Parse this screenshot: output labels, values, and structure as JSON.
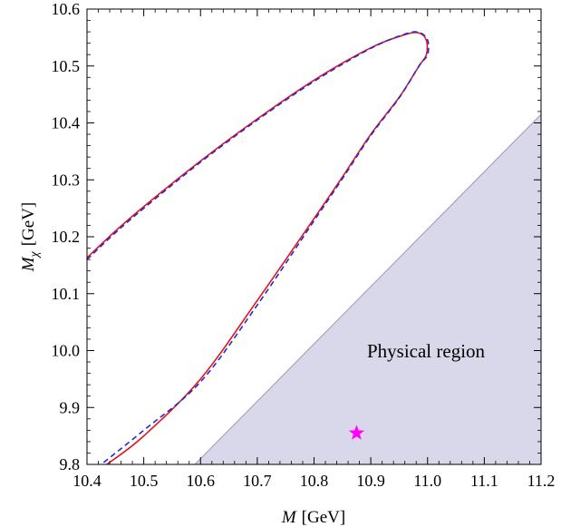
{
  "chart_data": {
    "type": "line",
    "xlabel": {
      "var": "M",
      "unit": "[GeV]"
    },
    "ylabel": {
      "var": "M",
      "sub": "χ",
      "unit": "[GeV]"
    },
    "xlim": [
      10.4,
      11.2
    ],
    "ylim": [
      9.8,
      10.6
    ],
    "xticks": [
      "10.4",
      "10.5",
      "10.6",
      "10.7",
      "10.8",
      "10.9",
      "11.0",
      "11.1",
      "11.2"
    ],
    "yticks": [
      "9.8",
      "9.9",
      "10.0",
      "10.1",
      "10.2",
      "10.3",
      "10.4",
      "10.5",
      "10.6"
    ],
    "grid": false,
    "region": {
      "label": "Physical region",
      "color": "#d8d8ea",
      "boundary": [
        [
          10.59,
          9.8
        ],
        [
          11.2,
          10.415
        ]
      ]
    },
    "marker": {
      "shape": "star",
      "color": "#ff00ff",
      "x": 10.875,
      "y": 9.855
    },
    "series": [
      {
        "color": "#e8131a",
        "style": "solid",
        "points": [
          [
            10.4,
            10.163
          ],
          [
            10.45,
            10.21
          ],
          [
            10.5,
            10.253
          ],
          [
            10.6,
            10.333
          ],
          [
            10.7,
            10.407
          ],
          [
            10.8,
            10.475
          ],
          [
            10.9,
            10.532
          ],
          [
            10.96,
            10.555
          ],
          [
            10.985,
            10.558
          ],
          [
            10.998,
            10.545
          ],
          [
            10.998,
            10.52
          ],
          [
            10.985,
            10.5
          ],
          [
            10.95,
            10.445
          ],
          [
            10.9,
            10.38
          ],
          [
            10.85,
            10.305
          ],
          [
            10.8,
            10.232
          ],
          [
            10.7,
            10.088
          ],
          [
            10.6,
            9.95
          ],
          [
            10.5,
            9.85
          ],
          [
            10.435,
            9.8
          ]
        ]
      },
      {
        "color": "#1f2bd6",
        "style": "dashed",
        "points": [
          [
            10.4,
            10.16
          ],
          [
            10.45,
            10.207
          ],
          [
            10.5,
            10.25
          ],
          [
            10.6,
            10.331
          ],
          [
            10.7,
            10.405
          ],
          [
            10.8,
            10.473
          ],
          [
            10.9,
            10.531
          ],
          [
            10.96,
            10.556
          ],
          [
            10.985,
            10.559
          ],
          [
            11.0,
            10.546
          ],
          [
            11.0,
            10.52
          ],
          [
            10.985,
            10.5
          ],
          [
            10.95,
            10.444
          ],
          [
            10.9,
            10.378
          ],
          [
            10.85,
            10.302
          ],
          [
            10.8,
            10.228
          ],
          [
            10.7,
            10.08
          ],
          [
            10.6,
            9.945
          ],
          [
            10.5,
            9.86
          ],
          [
            10.425,
            9.8
          ]
        ]
      }
    ]
  }
}
